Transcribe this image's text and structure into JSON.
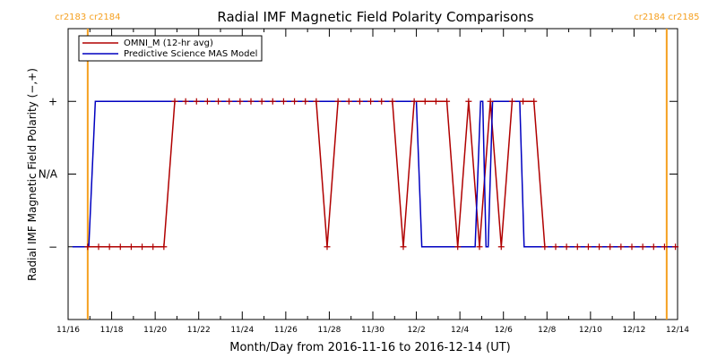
{
  "chart_data": {
    "type": "line",
    "title": "Radial IMF Magnetic Field Polarity Comparisons",
    "xlabel": "Month/Day from 2016-11-16 to 2016-12-14 (UT)",
    "ylabel": "Radial IMF Magnetic Field Polarity (−,+)",
    "x_range_days": [
      0,
      28
    ],
    "x_ticks": [
      {
        "day": 0,
        "label": "11/16"
      },
      {
        "day": 2,
        "label": "11/18"
      },
      {
        "day": 4,
        "label": "11/20"
      },
      {
        "day": 6,
        "label": "11/22"
      },
      {
        "day": 8,
        "label": "11/24"
      },
      {
        "day": 10,
        "label": "11/26"
      },
      {
        "day": 12,
        "label": "11/28"
      },
      {
        "day": 14,
        "label": "11/30"
      },
      {
        "day": 16,
        "label": "12/2"
      },
      {
        "day": 18,
        "label": "12/4"
      },
      {
        "day": 20,
        "label": "12/6"
      },
      {
        "day": 22,
        "label": "12/8"
      },
      {
        "day": 24,
        "label": "12/10"
      },
      {
        "day": 26,
        "label": "12/12"
      },
      {
        "day": 28,
        "label": "12/14"
      }
    ],
    "ylim": [
      -2,
      2
    ],
    "y_ticks": [
      {
        "value": 1,
        "label": "+"
      },
      {
        "value": 0,
        "label": "N/A"
      },
      {
        "value": -1,
        "label": "−"
      }
    ],
    "carrington_markers": [
      {
        "day": 0.9,
        "label": "cr2183 cr2184"
      },
      {
        "day": 27.5,
        "label": "cr2184 cr2185"
      }
    ],
    "legend_position": "top-left",
    "series": [
      {
        "name": "OMNI_M (12-hr avg)",
        "color": "#b00000",
        "points": [
          [
            0.9,
            -1
          ],
          [
            1.4,
            -1
          ],
          [
            1.9,
            -1
          ],
          [
            2.4,
            -1
          ],
          [
            2.9,
            -1
          ],
          [
            3.4,
            -1
          ],
          [
            3.9,
            -1
          ],
          [
            4.4,
            -1
          ],
          [
            4.9,
            1
          ],
          [
            5.4,
            1
          ],
          [
            5.9,
            1
          ],
          [
            6.4,
            1
          ],
          [
            6.9,
            1
          ],
          [
            7.4,
            1
          ],
          [
            7.9,
            1
          ],
          [
            8.4,
            1
          ],
          [
            8.9,
            1
          ],
          [
            9.4,
            1
          ],
          [
            9.9,
            1
          ],
          [
            10.4,
            1
          ],
          [
            10.9,
            1
          ],
          [
            11.4,
            1
          ],
          [
            11.9,
            -1
          ],
          [
            12.4,
            1
          ],
          [
            12.9,
            1
          ],
          [
            13.4,
            1
          ],
          [
            13.9,
            1
          ],
          [
            14.4,
            1
          ],
          [
            14.9,
            1
          ],
          [
            15.4,
            -1
          ],
          [
            15.9,
            1
          ],
          [
            16.4,
            1
          ],
          [
            16.9,
            1
          ],
          [
            17.4,
            1
          ],
          [
            17.9,
            -1
          ],
          [
            18.4,
            1
          ],
          [
            18.9,
            -1
          ],
          [
            19.4,
            1
          ],
          [
            19.9,
            -1
          ],
          [
            20.4,
            1
          ],
          [
            20.9,
            1
          ],
          [
            21.4,
            1
          ],
          [
            21.9,
            -1
          ],
          [
            22.4,
            -1
          ],
          [
            22.9,
            -1
          ],
          [
            23.4,
            -1
          ],
          [
            23.9,
            -1
          ],
          [
            24.4,
            -1
          ],
          [
            24.9,
            -1
          ],
          [
            25.4,
            -1
          ],
          [
            25.9,
            -1
          ],
          [
            26.4,
            -1
          ],
          [
            26.9,
            -1
          ],
          [
            27.4,
            -1
          ],
          [
            27.9,
            -1
          ]
        ]
      },
      {
        "name": "Predictive Science MAS Model",
        "color": "#0000c0",
        "points": [
          [
            0.2,
            -1
          ],
          [
            0.95,
            -1
          ],
          [
            1.25,
            1
          ],
          [
            16.0,
            1
          ],
          [
            16.25,
            -1
          ],
          [
            18.7,
            -1
          ],
          [
            18.95,
            1
          ],
          [
            19.05,
            1
          ],
          [
            19.2,
            -1
          ],
          [
            19.3,
            -1
          ],
          [
            19.5,
            1
          ],
          [
            20.75,
            1
          ],
          [
            20.95,
            -1
          ],
          [
            28.0,
            -1
          ]
        ]
      }
    ]
  }
}
